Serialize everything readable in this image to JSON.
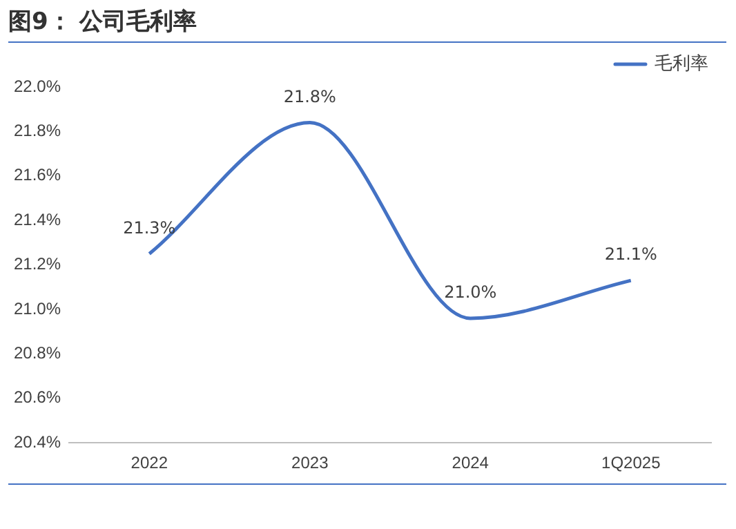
{
  "chart_data": {
    "type": "line",
    "title": "图9： 公司毛利率",
    "categories": [
      "2022",
      "2023",
      "2024",
      "1Q2025"
    ],
    "series": [
      {
        "name": "毛利率",
        "color": "#4472c4",
        "values": [
          21.25,
          21.84,
          20.96,
          21.13
        ],
        "value_labels": [
          "21.3%",
          "21.8%",
          "21.0%",
          "21.1%"
        ]
      }
    ],
    "ylim": [
      20.4,
      22.0
    ],
    "yticks": [
      {
        "value": 20.4,
        "label": "20.4%"
      },
      {
        "value": 20.6,
        "label": "20.6%"
      },
      {
        "value": 20.8,
        "label": "20.8%"
      },
      {
        "value": 21.0,
        "label": "21.0%"
      },
      {
        "value": 21.2,
        "label": "21.2%"
      },
      {
        "value": 21.4,
        "label": "21.4%"
      },
      {
        "value": 21.6,
        "label": "21.6%"
      },
      {
        "value": 21.8,
        "label": "21.8%"
      },
      {
        "value": 22.0,
        "label": "22.0%"
      }
    ],
    "grid": false,
    "legend": "top right",
    "marker": "none",
    "line_style": "solid"
  }
}
